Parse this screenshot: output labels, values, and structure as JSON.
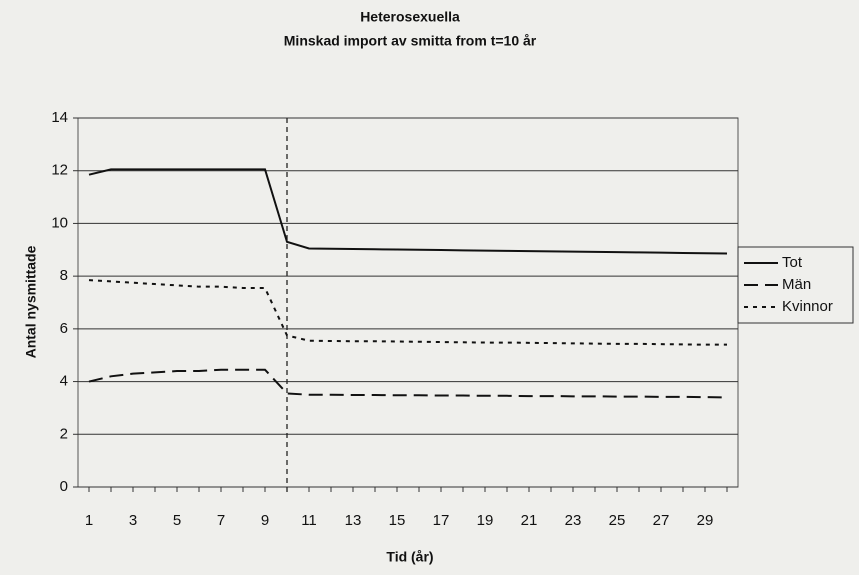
{
  "chart_data": {
    "type": "line",
    "title": "Heterosexuella",
    "subtitle": "Minskad import av smitta from t=10 år",
    "x_label": "Tid (år)",
    "y_label": "Antal nysmittade",
    "x": [
      1,
      2,
      3,
      4,
      5,
      6,
      7,
      8,
      9,
      10,
      11,
      12,
      13,
      14,
      15,
      16,
      17,
      18,
      19,
      20,
      21,
      22,
      23,
      24,
      25,
      26,
      27,
      28,
      29,
      30
    ],
    "series": [
      {
        "name": "Tot",
        "color": "#111111",
        "dash": "solid",
        "values": [
          11.85,
          12.05,
          12.05,
          12.05,
          12.05,
          12.05,
          12.05,
          12.05,
          12.05,
          9.3,
          9.05,
          9.04,
          9.03,
          9.02,
          9.01,
          9.0,
          8.99,
          8.98,
          8.97,
          8.96,
          8.95,
          8.94,
          8.93,
          8.92,
          8.91,
          8.9,
          8.89,
          8.88,
          8.87,
          8.86
        ]
      },
      {
        "name": "Män",
        "color": "#111111",
        "dash": "long",
        "values": [
          4.0,
          4.2,
          4.3,
          4.35,
          4.4,
          4.4,
          4.45,
          4.45,
          4.45,
          3.55,
          3.5,
          3.5,
          3.49,
          3.49,
          3.48,
          3.48,
          3.47,
          3.47,
          3.46,
          3.46,
          3.45,
          3.45,
          3.44,
          3.44,
          3.43,
          3.43,
          3.42,
          3.42,
          3.41,
          3.4
        ]
      },
      {
        "name": "Kvinnor",
        "color": "#111111",
        "dash": "dotted",
        "values": [
          7.85,
          7.8,
          7.75,
          7.7,
          7.65,
          7.6,
          7.6,
          7.55,
          7.55,
          5.75,
          5.55,
          5.54,
          5.53,
          5.53,
          5.52,
          5.51,
          5.5,
          5.49,
          5.48,
          5.48,
          5.47,
          5.46,
          5.45,
          5.44,
          5.43,
          5.43,
          5.42,
          5.41,
          5.4,
          5.4
        ]
      }
    ],
    "vline": 10,
    "xlim": [
      0.5,
      30.5
    ],
    "xticks": [
      1,
      3,
      5,
      7,
      9,
      11,
      13,
      15,
      17,
      19,
      21,
      23,
      25,
      27,
      29
    ],
    "ylim": [
      0,
      14
    ],
    "yticks": [
      0,
      2,
      4,
      6,
      8,
      10,
      12,
      14
    ],
    "grid": true,
    "legend": "right"
  }
}
